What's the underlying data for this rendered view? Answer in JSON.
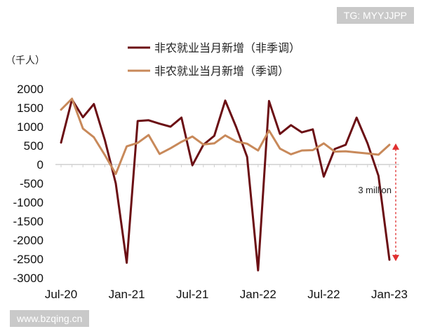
{
  "watermarks": {
    "top_right": "TG: MYYJJPP",
    "bottom_left": "www.bzqing.cn"
  },
  "chart_data": {
    "type": "line",
    "unit_label": "（千人）",
    "x": [
      "2020-07",
      "2020-08",
      "2020-09",
      "2020-10",
      "2020-11",
      "2020-12",
      "2021-01",
      "2021-02",
      "2021-03",
      "2021-04",
      "2021-05",
      "2021-06",
      "2021-07",
      "2021-08",
      "2021-09",
      "2021-10",
      "2021-11",
      "2021-12",
      "2022-01",
      "2022-02",
      "2022-03",
      "2022-04",
      "2022-05",
      "2022-06",
      "2022-07",
      "2022-08",
      "2022-09",
      "2022-10",
      "2022-11",
      "2022-12",
      "2023-01"
    ],
    "x_tick_labels": [
      "Jul-20",
      "Jan-21",
      "Jul-21",
      "Jan-22",
      "Jul-22",
      "Jan-23"
    ],
    "y_ticks": [
      2000,
      1500,
      1000,
      500,
      0,
      -500,
      -1000,
      -1500,
      -2000,
      -2500,
      -3000
    ],
    "ylim": [
      -3000,
      2000
    ],
    "legend_position": "top",
    "series": [
      {
        "name": "非农就业当月新增（非季调）",
        "color": "#6b0f14",
        "values": [
          580,
          1720,
          1250,
          1600,
          650,
          -500,
          -2600,
          1150,
          1170,
          1080,
          1000,
          1240,
          -20,
          520,
          760,
          1690,
          990,
          200,
          -2800,
          1680,
          810,
          1040,
          850,
          930,
          -320,
          410,
          520,
          1240,
          560,
          -300,
          -2520
        ]
      },
      {
        "name": "非农就业当月新增（季调）",
        "color": "#c8895a",
        "values": [
          1450,
          1740,
          950,
          720,
          250,
          -250,
          480,
          570,
          780,
          280,
          430,
          600,
          740,
          530,
          560,
          770,
          610,
          550,
          370,
          900,
          420,
          270,
          370,
          380,
          560,
          340,
          350,
          320,
          290,
          260,
          520
        ]
      }
    ],
    "annotation": {
      "text": "3 million",
      "from_value": 520,
      "to_value": -2520,
      "x": "2023-01",
      "color": "#e03030"
    },
    "grid": false
  }
}
